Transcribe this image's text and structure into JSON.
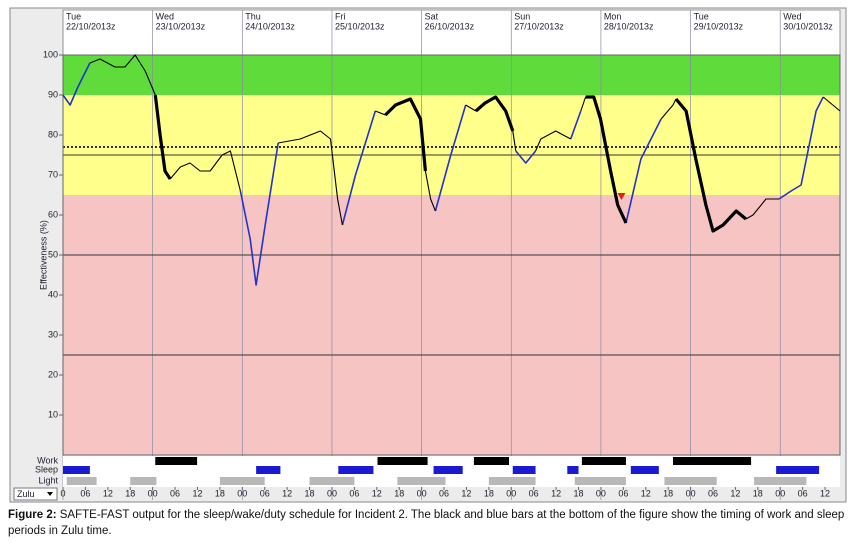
{
  "chart_data": {
    "type": "line",
    "y_label": "Effectiveness (%)",
    "ylim": [
      0,
      100
    ],
    "yticks": [
      10,
      20,
      30,
      40,
      50,
      60,
      70,
      80,
      90,
      100
    ],
    "xlim": [
      0,
      208
    ],
    "xticks": [
      0,
      {
        "value": 6,
        "label": "06"
      },
      12,
      18,
      {
        "value": 24,
        "label": "00"
      },
      {
        "value": 30,
        "label": "06"
      },
      {
        "value": 36,
        "label": "12"
      },
      {
        "value": 42,
        "label": "18"
      },
      {
        "value": 48,
        "label": "00"
      },
      {
        "value": 54,
        "label": "06"
      },
      {
        "value": 60,
        "label": "12"
      },
      {
        "value": 66,
        "label": "18"
      },
      {
        "value": 72,
        "label": "00"
      },
      {
        "value": 78,
        "label": "06"
      },
      {
        "value": 84,
        "label": "12"
      },
      {
        "value": 90,
        "label": "18"
      },
      {
        "value": 96,
        "label": "00"
      },
      {
        "value": 102,
        "label": "06"
      },
      {
        "value": 108,
        "label": "12"
      },
      {
        "value": 114,
        "label": "18"
      },
      {
        "value": 120,
        "label": "00"
      },
      {
        "value": 126,
        "label": "06"
      },
      {
        "value": 132,
        "label": "12"
      },
      {
        "value": 138,
        "label": "18"
      },
      {
        "value": 144,
        "label": "00"
      },
      {
        "value": 150,
        "label": "06"
      },
      {
        "value": 156,
        "label": "12"
      },
      {
        "value": 162,
        "label": "18"
      },
      {
        "value": 168,
        "label": "00"
      },
      {
        "value": 174,
        "label": "06"
      },
      {
        "value": 180,
        "label": "12"
      },
      {
        "value": 186,
        "label": "18"
      },
      {
        "value": 192,
        "label": "00"
      },
      {
        "value": 198,
        "label": "06"
      },
      {
        "value": 204,
        "label": "12"
      }
    ],
    "days": [
      {
        "x": 0,
        "day": "Tue",
        "date": "22/10/2013z"
      },
      {
        "x": 24,
        "day": "Wed",
        "date": "23/10/2013z"
      },
      {
        "x": 48,
        "day": "Thu",
        "date": "24/10/2013z"
      },
      {
        "x": 72,
        "day": "Fri",
        "date": "25/10/2013z"
      },
      {
        "x": 96,
        "day": "Sat",
        "date": "26/10/2013z"
      },
      {
        "x": 120,
        "day": "Sun",
        "date": "27/10/2013z"
      },
      {
        "x": 144,
        "day": "Mon",
        "date": "28/10/2013z"
      },
      {
        "x": 168,
        "day": "Tue",
        "date": "29/10/2013z"
      },
      {
        "x": 192,
        "day": "Wed",
        "date": "30/10/2013z"
      }
    ],
    "bands": [
      {
        "from": 90,
        "to": 100,
        "color": "#5fdc3c"
      },
      {
        "from": 65,
        "to": 90,
        "color": "#ffff8c"
      },
      {
        "from": 0,
        "to": 65,
        "color": "#f7c4c4"
      }
    ],
    "reference_lines": [
      {
        "value": 77,
        "style": "dotted"
      },
      {
        "value": 75,
        "style": "solid"
      },
      {
        "value": 50,
        "style": "solid"
      },
      {
        "value": 25,
        "style": "solid"
      }
    ],
    "series": [
      {
        "color": "#2233cc",
        "width": 1.6,
        "x": [
          0,
          1.9,
          4,
          7.2,
          null,
          47.5,
          50.1,
          51.7,
          54.2,
          57.6,
          null,
          74.8,
          78.3,
          83.6,
          null,
          99.7,
          103.8,
          107.8,
          null,
          121.2,
          123.9,
          126.5,
          null,
          135.9,
          138.6,
          null,
          150.7,
          154.7,
          160.1,
          null,
          191.7,
          194.9,
          197.6,
          201.6,
          203.5
        ],
        "values": [
          90,
          87.5,
          92,
          98,
          null,
          66,
          54,
          42.5,
          58,
          78,
          null,
          57.5,
          70,
          86,
          null,
          61,
          75,
          87.5,
          null,
          76,
          73,
          76,
          null,
          79,
          86,
          null,
          58,
          74,
          84,
          null,
          64,
          66,
          67.5,
          86,
          89.5
        ]
      },
      {
        "color": "#000000",
        "width": 1.1,
        "x": [
          7.2,
          9.9,
          13.9,
          16.6,
          19.3,
          22,
          24.7,
          null,
          28.7,
          31.4,
          34,
          36.7,
          39.4,
          42.6,
          44.8,
          47.5,
          null,
          57.6,
          63.5,
          68.9,
          71.6,
          73.5,
          74.8,
          null,
          83.6,
          86.3,
          null,
          97,
          98.4,
          99.7,
          null,
          107.8,
          110.5,
          null,
          120.4,
          121.2,
          null,
          126.5,
          127.9,
          131.9,
          135.9,
          null,
          138.6,
          139.9,
          null,
          160.1,
          163.3,
          164.1,
          null,
          182.8,
          184.7,
          188.2,
          191.7,
          null,
          203.5,
          208
        ],
        "values": [
          98,
          99,
          97,
          97,
          100,
          96,
          90,
          null,
          69,
          72,
          73,
          71,
          71,
          75,
          76,
          66,
          null,
          78,
          79,
          81,
          79,
          64,
          57.5,
          null,
          86,
          85,
          null,
          71,
          64,
          61,
          null,
          87.5,
          86,
          null,
          81,
          76,
          null,
          76,
          79,
          81,
          79,
          null,
          86,
          89.5,
          null,
          84,
          87.5,
          89,
          null,
          59,
          60,
          64,
          64,
          null,
          89.5,
          86
        ]
      },
      {
        "color": "#000000",
        "width": 3.2,
        "x": [
          24.7,
          26,
          27.3,
          28.7,
          null,
          86.3,
          89,
          93,
          95.7,
          97,
          null,
          110.5,
          113,
          115.8,
          118.5,
          120.4,
          null,
          139.9,
          142.1,
          143.9,
          146.6,
          148.5,
          150.7,
          null,
          164.1,
          166.8,
          169.4,
          172.1,
          174,
          176.7,
          180.2,
          182.8
        ],
        "values": [
          90,
          80,
          71,
          69,
          null,
          85,
          87.5,
          89,
          84,
          71,
          null,
          86,
          88,
          89.5,
          86,
          81,
          null,
          89.5,
          89.5,
          84,
          71,
          62.5,
          58,
          null,
          89,
          86,
          74,
          62.5,
          56,
          57.5,
          61,
          59
        ]
      }
    ],
    "marker": {
      "x": 149.5,
      "value": 64.5,
      "color": "#e02020"
    },
    "rows": [
      {
        "label": "Work",
        "color": "#000000",
        "periods": [
          [
            24.7,
            35.9
          ],
          [
            84.2,
            97.6
          ],
          [
            110,
            119.4
          ],
          [
            138.9,
            150.7
          ],
          [
            163.3,
            184.2
          ]
        ]
      },
      {
        "label": "Sleep",
        "color": "#1a1ad0",
        "periods": [
          [
            0,
            7.2
          ],
          [
            51.7,
            58.2
          ],
          [
            73.7,
            83.1
          ],
          [
            99.2,
            107
          ],
          [
            120.4,
            126.5
          ],
          [
            135,
            138
          ],
          [
            152,
            159.5
          ],
          [
            190.9,
            202.4
          ]
        ]
      },
      {
        "label": "Light",
        "color": "#b8b8b8",
        "periods": [
          [
            1,
            9
          ],
          [
            18,
            25
          ],
          [
            42,
            54
          ],
          [
            66,
            78
          ],
          [
            89.5,
            102.4
          ],
          [
            114,
            126.5
          ],
          [
            137,
            150.7
          ],
          [
            161,
            175
          ],
          [
            185,
            199
          ]
        ]
      }
    ],
    "timezone": "Zulu"
  },
  "caption": {
    "label": "Figure 2:",
    "text": " SAFTE-FAST output for the sleep/wake/duty schedule for Incident 2. The black and blue bars at the bottom of the figure show the timing of work and sleep periods in Zulu time."
  }
}
